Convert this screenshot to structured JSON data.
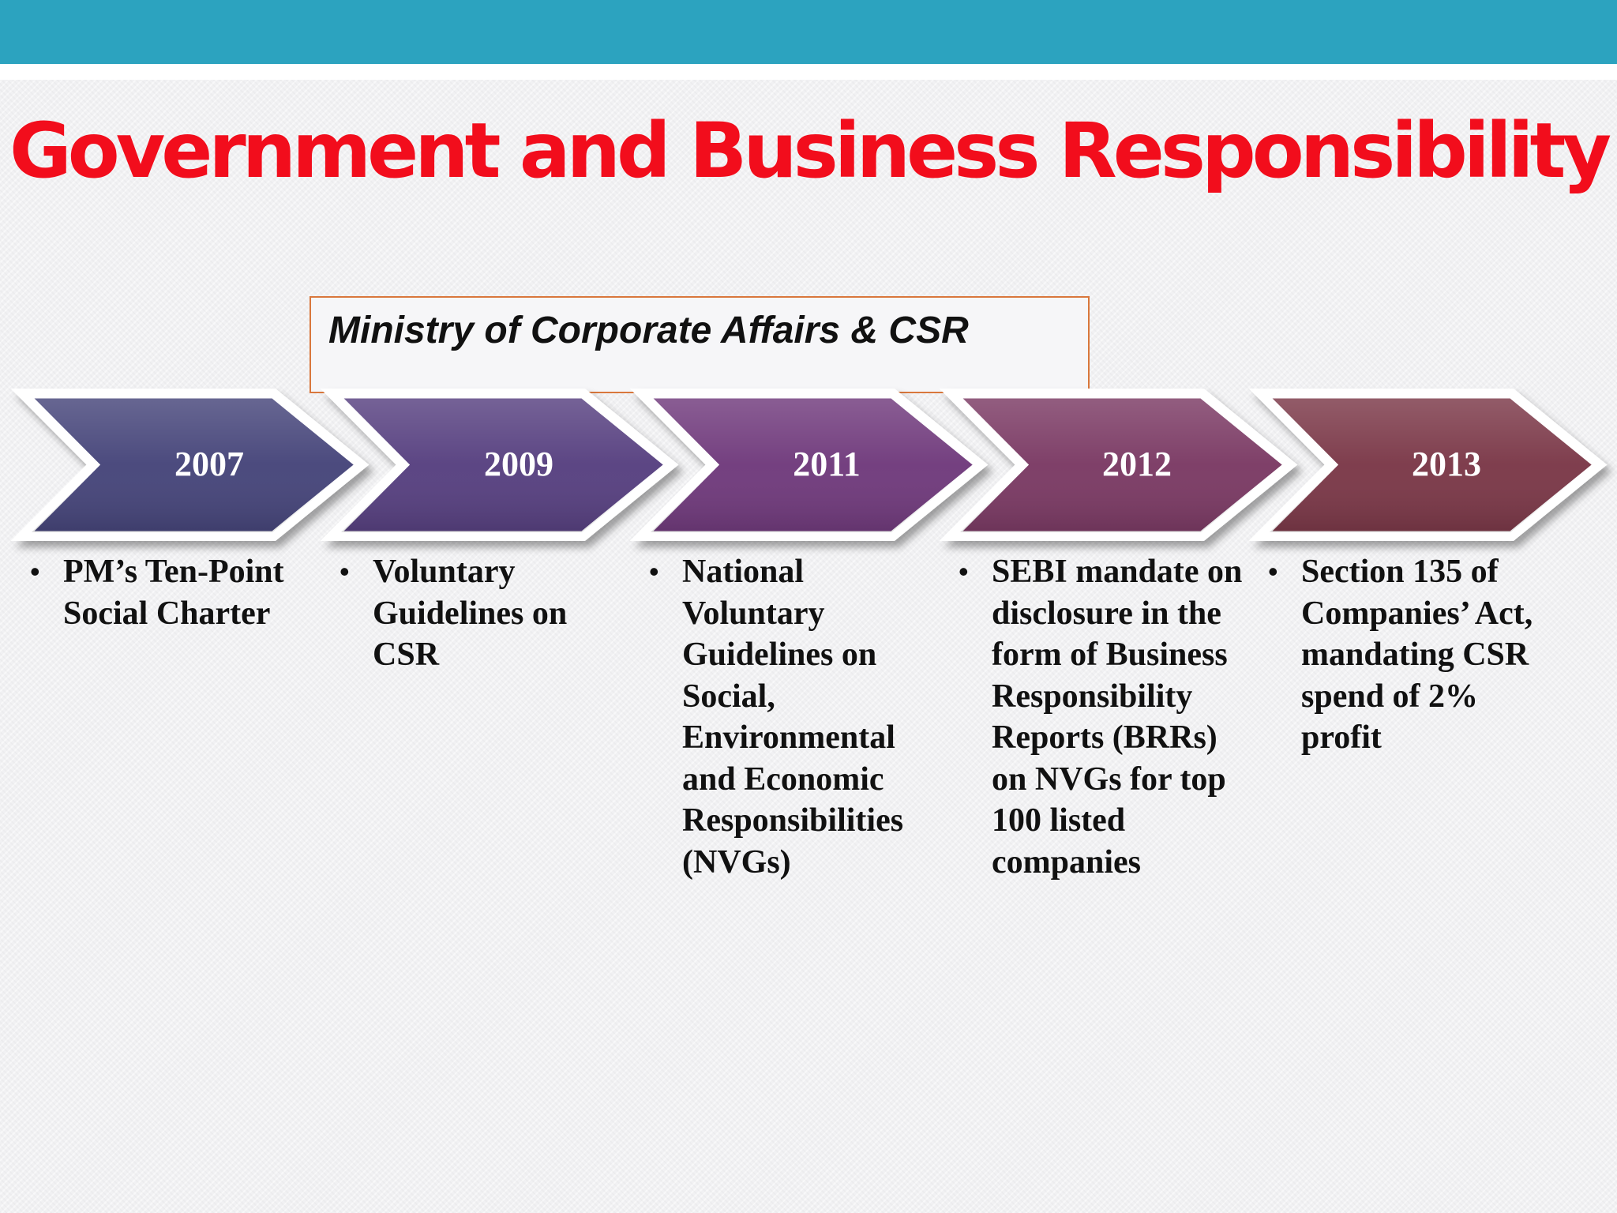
{
  "title": "Government and Business Responsibility",
  "header_group": {
    "label": "Ministry of Corporate Affairs & CSR"
  },
  "timeline": [
    {
      "year": "2007",
      "color": "#46457a",
      "description": "PM’s Ten-Point Social Charter"
    },
    {
      "year": "2009",
      "color": "#574080",
      "description": "Voluntary Guidelines on CSR"
    },
    {
      "year": "2011",
      "color": "#703a7c",
      "description": "National Voluntary Guidelines on Social, Environmental and Economic Responsibilities (NVGs)"
    },
    {
      "year": "2012",
      "color": "#7b3a64",
      "description": "SEBI mandate on disclosure in the form of Business Responsibility Reports (BRRs) on NVGs for top 100 listed companies"
    },
    {
      "year": "2013",
      "color": "#7b3848",
      "description": "Section 135 of Companies’ Act, mandating CSR spend of 2% profit"
    }
  ],
  "colors": {
    "banner": "#2ca3bf",
    "title": "#f20d1c",
    "box_border": "#d9773c"
  }
}
